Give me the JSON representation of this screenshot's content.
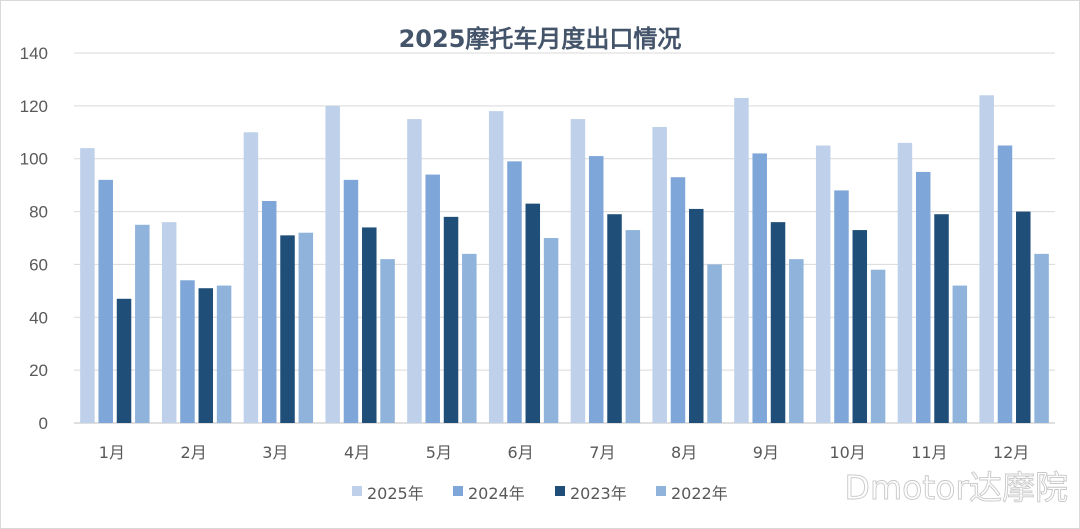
{
  "watermark": "Dmotor达摩院",
  "chart_data": {
    "type": "bar",
    "title": "2025摩托车月度出口情况",
    "xlabel": "",
    "ylabel": "",
    "ylim": [
      0,
      140
    ],
    "yticks": [
      0,
      20,
      40,
      60,
      80,
      100,
      120,
      140
    ],
    "grid": true,
    "legend": "bottom",
    "categories": [
      "1月",
      "2月",
      "3月",
      "4月",
      "5月",
      "6月",
      "7月",
      "8月",
      "9月",
      "10月",
      "11月",
      "12月"
    ],
    "series": [
      {
        "name": "2025年",
        "color": "#bfd0ea",
        "values": [
          104,
          76,
          110,
          120,
          115,
          118,
          115,
          112,
          123,
          105,
          106,
          124
        ]
      },
      {
        "name": "2024年",
        "color": "#7ea6d8",
        "values": [
          92,
          54,
          84,
          92,
          94,
          99,
          101,
          93,
          102,
          88,
          95,
          105
        ]
      },
      {
        "name": "2023年",
        "color": "#1f4e79",
        "values": [
          47,
          51,
          71,
          74,
          78,
          83,
          79,
          81,
          76,
          73,
          79,
          80
        ]
      },
      {
        "name": "2022年",
        "color": "#8fb3da",
        "values": [
          75,
          52,
          72,
          62,
          64,
          70,
          73,
          60,
          62,
          58,
          52,
          64
        ]
      }
    ]
  }
}
